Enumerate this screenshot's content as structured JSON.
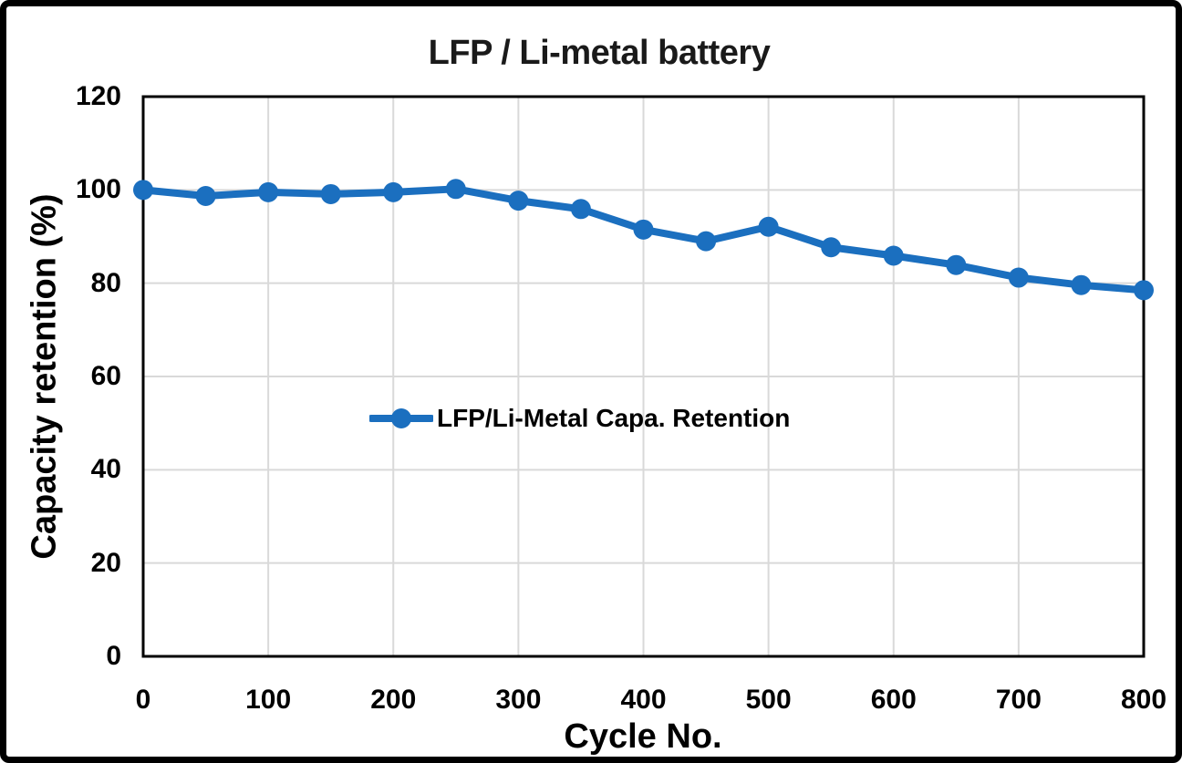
{
  "window": {
    "background": "#ffffff",
    "border_color": "#000000"
  },
  "chart_data": {
    "type": "line",
    "title": "LFP / Li-metal battery",
    "xlabel": "Cycle No.",
    "ylabel": "Capacity retention (%)",
    "xlim": [
      0,
      800
    ],
    "ylim": [
      0,
      120
    ],
    "xticks": [
      0,
      100,
      200,
      300,
      400,
      500,
      600,
      700,
      800
    ],
    "yticks": [
      0,
      20,
      40,
      60,
      80,
      100,
      120
    ],
    "grid": true,
    "legend": {
      "position": "inside-center",
      "entries": [
        "LFP/Li-Metal Capa. Retention"
      ]
    },
    "series": [
      {
        "name": "LFP/Li-Metal Capa. Retention",
        "color": "#1b6fbf",
        "marker": "circle",
        "x": [
          0,
          50,
          100,
          150,
          200,
          250,
          300,
          350,
          400,
          450,
          500,
          550,
          600,
          650,
          700,
          750,
          800
        ],
        "y": [
          100,
          98.7,
          99.5,
          99.1,
          99.5,
          100.2,
          97.7,
          95.9,
          91.5,
          89.0,
          92.1,
          87.7,
          85.9,
          83.9,
          81.2,
          79.6,
          78.5
        ]
      }
    ],
    "colors": {
      "grid": "#d9d9d9",
      "axis": "#000000",
      "text": "#000000"
    }
  }
}
